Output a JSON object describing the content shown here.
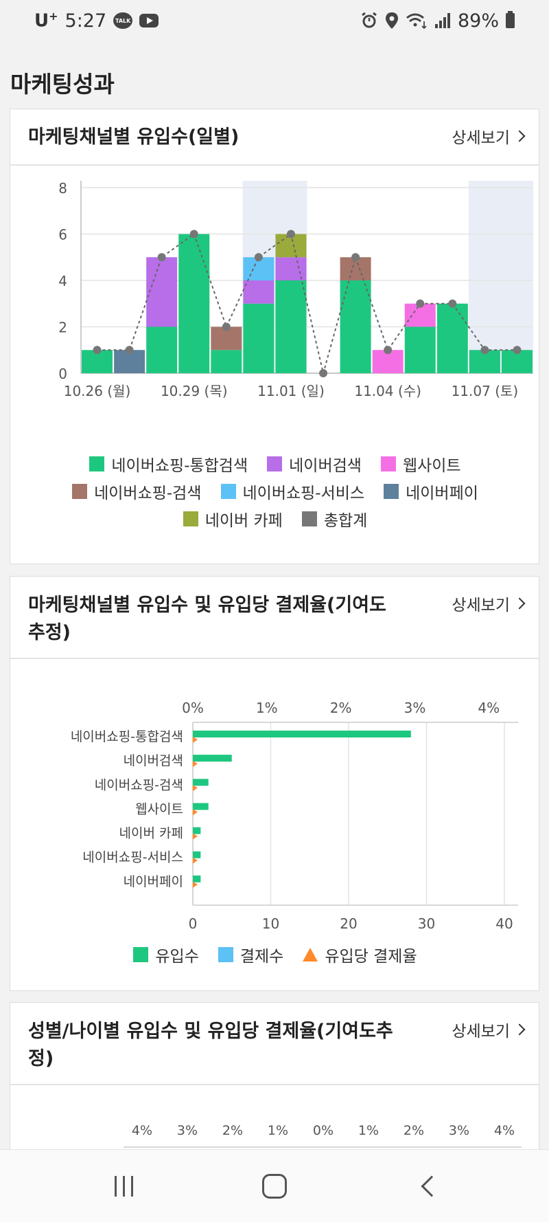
{
  "status_bar": {
    "carrier": "U",
    "carrier_sup": "+",
    "time": "5:27",
    "talk_icon_text": "TALK",
    "battery": "89%"
  },
  "page": {
    "title": "마케팅성과"
  },
  "cards": [
    {
      "title": "마케팅채널별 유입수(일별)",
      "detail": "상세보기"
    },
    {
      "title_line1": "마케팅채널별 유입수 및 유입당 결제율(기여도",
      "title_line2": "추정)",
      "detail": "상세보기"
    },
    {
      "title_line1": "성별/나이별 유입수 및 유입당 결제율(기여도추",
      "title_line2": "정)",
      "detail": "상세보기"
    }
  ],
  "colors": {
    "naver_shopping_integrated": "#1ec77f",
    "naver_search": "#b76ee8",
    "website": "#f56fe4",
    "naver_shopping_search": "#a5756a",
    "naver_shopping_service": "#5cc1f5",
    "naver_pay": "#5f809c",
    "naver_cafe": "#9aaa3b",
    "total": "#777777",
    "conversion_rate": "#ff8a2a",
    "payments": "#5cc1f5",
    "weekend_band": "#e9eef6"
  },
  "chart_data": [
    {
      "type": "bar",
      "stacked": true,
      "dates": [
        "10.26",
        "10.27",
        "10.28",
        "10.29",
        "10.30",
        "10.31",
        "11.01",
        "11.02",
        "11.03",
        "11.04",
        "11.05",
        "11.06",
        "11.07",
        "11.08"
      ],
      "x_tick_labels": [
        "10.26 (월)",
        "10.29 (목)",
        "11.01 (일)",
        "11.04 (수)",
        "11.07 (토)"
      ],
      "y_ticks": [
        "0",
        "2",
        "4",
        "6",
        "8"
      ],
      "ylim": [
        0,
        8
      ],
      "grid": true,
      "weekend_bands": [
        [
          "10.31",
          "11.01"
        ],
        [
          "11.07",
          "11.08"
        ]
      ],
      "series": [
        {
          "name": "네이버쇼핑-통합검색",
          "color_key": "naver_shopping_integrated",
          "values": [
            1,
            0,
            2,
            6,
            1,
            3,
            4,
            0,
            4,
            0,
            2,
            3,
            1,
            1
          ]
        },
        {
          "name": "네이버검색",
          "color_key": "naver_search",
          "values": [
            0,
            0,
            3,
            0,
            0,
            1,
            1,
            0,
            0,
            0,
            0,
            0,
            0,
            0
          ]
        },
        {
          "name": "웹사이트",
          "color_key": "website",
          "values": [
            0,
            0,
            0,
            0,
            0,
            0,
            0,
            0,
            0,
            1,
            1,
            0,
            0,
            0
          ]
        },
        {
          "name": "네이버쇼핑-검색",
          "color_key": "naver_shopping_search",
          "values": [
            0,
            0,
            0,
            0,
            1,
            0,
            0,
            0,
            1,
            0,
            0,
            0,
            0,
            0
          ]
        },
        {
          "name": "네이버쇼핑-서비스",
          "color_key": "naver_shopping_service",
          "values": [
            0,
            0,
            0,
            0,
            0,
            1,
            0,
            0,
            0,
            0,
            0,
            0,
            0,
            0
          ]
        },
        {
          "name": "네이버페이",
          "color_key": "naver_pay",
          "values": [
            0,
            1,
            0,
            0,
            0,
            0,
            0,
            0,
            0,
            0,
            0,
            0,
            0,
            0
          ]
        },
        {
          "name": "네이버 카페",
          "color_key": "naver_cafe",
          "values": [
            0,
            0,
            0,
            0,
            0,
            0,
            1,
            0,
            0,
            0,
            0,
            0,
            0,
            0
          ]
        }
      ],
      "total": {
        "name": "총합계",
        "color_key": "total",
        "values": [
          1,
          1,
          5,
          6,
          2,
          5,
          6,
          0,
          5,
          1,
          3,
          3,
          1,
          1
        ]
      }
    },
    {
      "type": "bar",
      "orientation": "horizontal",
      "categories": [
        "네이버쇼핑-통합검색",
        "네이버검색",
        "네이버쇼핑-검색",
        "웹사이트",
        "네이버 카페",
        "네이버쇼핑-서비스",
        "네이버페이"
      ],
      "bottom_ticks": [
        "0",
        "10",
        "20",
        "30",
        "40"
      ],
      "top_ticks": [
        "0%",
        "1%",
        "2%",
        "3%",
        "4%"
      ],
      "xlim": [
        0,
        40
      ],
      "top_xlim": [
        0,
        4
      ],
      "grid": true,
      "series": [
        {
          "name": "유입수",
          "color_key": "naver_shopping_integrated",
          "values": [
            28,
            5,
            2,
            2,
            1,
            1,
            1
          ]
        },
        {
          "name": "결제수",
          "color_key": "payments",
          "values": [
            0,
            0,
            0,
            0,
            0,
            0,
            0
          ]
        },
        {
          "name": "유입당 결제율",
          "color_key": "conversion_rate",
          "values": [
            0,
            0,
            0,
            0,
            0,
            0,
            0
          ]
        }
      ]
    },
    {
      "type": "bar",
      "orientation": "horizontal",
      "top_ticks": [
        "4%",
        "3%",
        "2%",
        "1%",
        "0%",
        "1%",
        "2%",
        "3%",
        "4%"
      ]
    }
  ]
}
